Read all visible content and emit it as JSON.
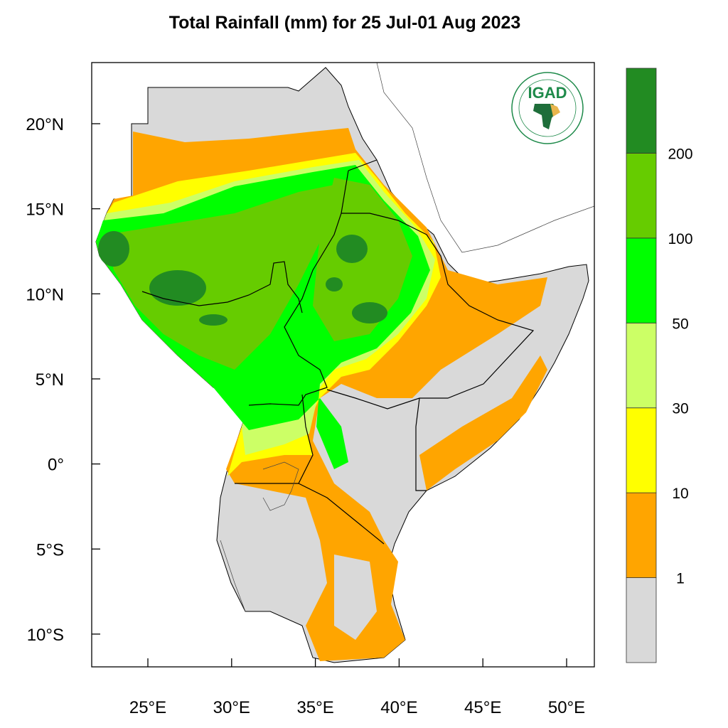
{
  "title": "Total Rainfall (mm) for 25 Jul-01 Aug 2023",
  "map": {
    "type": "filled-contour-map",
    "region": "Greater Horn of Africa",
    "lon_range": [
      21.6,
      51.7
    ],
    "lat_range": [
      -11.9,
      23.6
    ],
    "x_ticks": [
      {
        "value": 25,
        "label": "25°E"
      },
      {
        "value": 30,
        "label": "30°E"
      },
      {
        "value": 35,
        "label": "35°E"
      },
      {
        "value": 40,
        "label": "40°E"
      },
      {
        "value": 45,
        "label": "45°E"
      },
      {
        "value": 50,
        "label": "50°E"
      }
    ],
    "y_ticks": [
      {
        "value": 20,
        "label": "20°N"
      },
      {
        "value": 15,
        "label": "15°N"
      },
      {
        "value": 10,
        "label": "10°N"
      },
      {
        "value": 5,
        "label": "5°N"
      },
      {
        "value": 0,
        "label": "0°"
      },
      {
        "value": -5,
        "label": "5°S"
      },
      {
        "value": -10,
        "label": "10°S"
      }
    ],
    "legend": {
      "placement": "right",
      "levels": [
        "1",
        "10",
        "30",
        "50",
        "100",
        "200"
      ],
      "colors": [
        "#d9d9d9",
        "#ffa500",
        "#ffff00",
        "#ccff66",
        "#00ff00",
        "#66cc00",
        "#228b22"
      ]
    },
    "logo": {
      "text": "IGAD",
      "ring_text": "INTERGOVERNMENTAL AUTHORITY ON DEVELOPMENT",
      "accent": "#1e8a4a"
    }
  }
}
